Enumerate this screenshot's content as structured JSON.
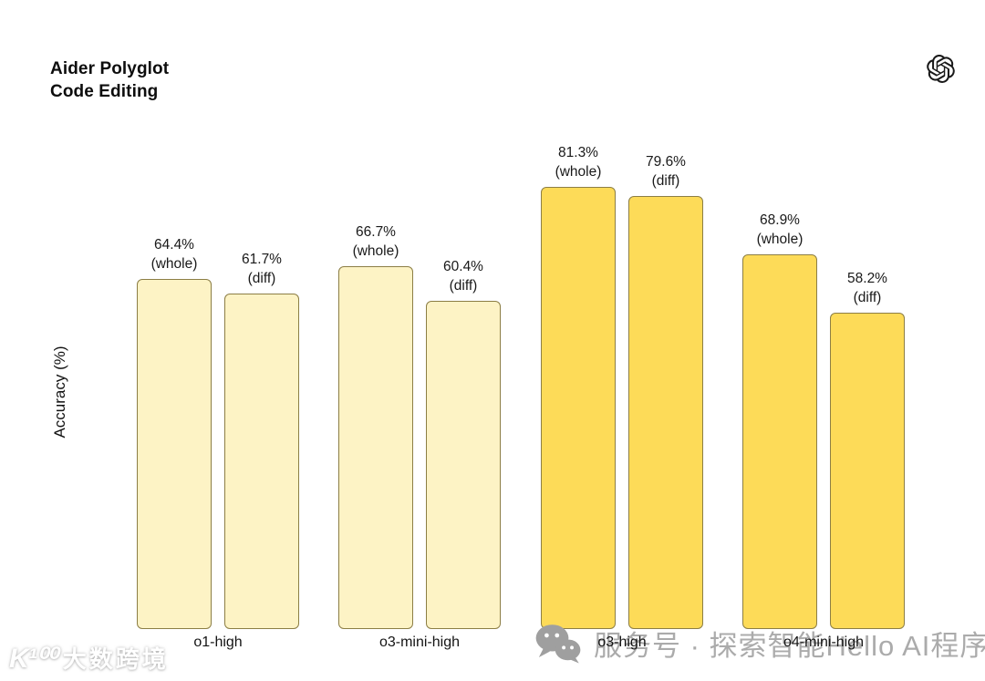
{
  "header": {
    "title_line1": "Aider Polyglot",
    "title_line2": "Code Editing",
    "logo_name": "openai-logo"
  },
  "chart_data": {
    "type": "bar",
    "title": "Aider Polyglot Code Editing",
    "xlabel": "",
    "ylabel": "Accuracy (%)",
    "ylim": [
      0,
      100
    ],
    "grid": false,
    "legend": "none (labels above bars)",
    "categories": [
      "o1-high",
      "o3-mini-high",
      "o3-high",
      "o4-mini-high"
    ],
    "series": [
      {
        "name": "whole",
        "values": [
          64.4,
          66.7,
          81.3,
          68.9
        ],
        "value_labels": [
          "64.4%",
          "66.7%",
          "81.3%",
          "68.9%"
        ],
        "sublabel": "(whole)"
      },
      {
        "name": "diff",
        "values": [
          61.7,
          60.4,
          79.6,
          58.2
        ],
        "value_labels": [
          "61.7%",
          "60.4%",
          "79.6%",
          "58.2%"
        ],
        "sublabel": "(diff)"
      }
    ],
    "group_fills": [
      "#FDF3C5",
      "#FDF3C5",
      "#FDDB58",
      "#FDDB58"
    ],
    "bar_border_color": "#8C7E45",
    "label_color": "#191919"
  },
  "watermarks": {
    "bottom_left": {
      "logo_text": "K¹⁰⁰",
      "text": "大数跨境"
    },
    "bottom_right": {
      "icon": "wechat-icon",
      "text": "服务号 · 探索智能Hello AI程序"
    }
  }
}
